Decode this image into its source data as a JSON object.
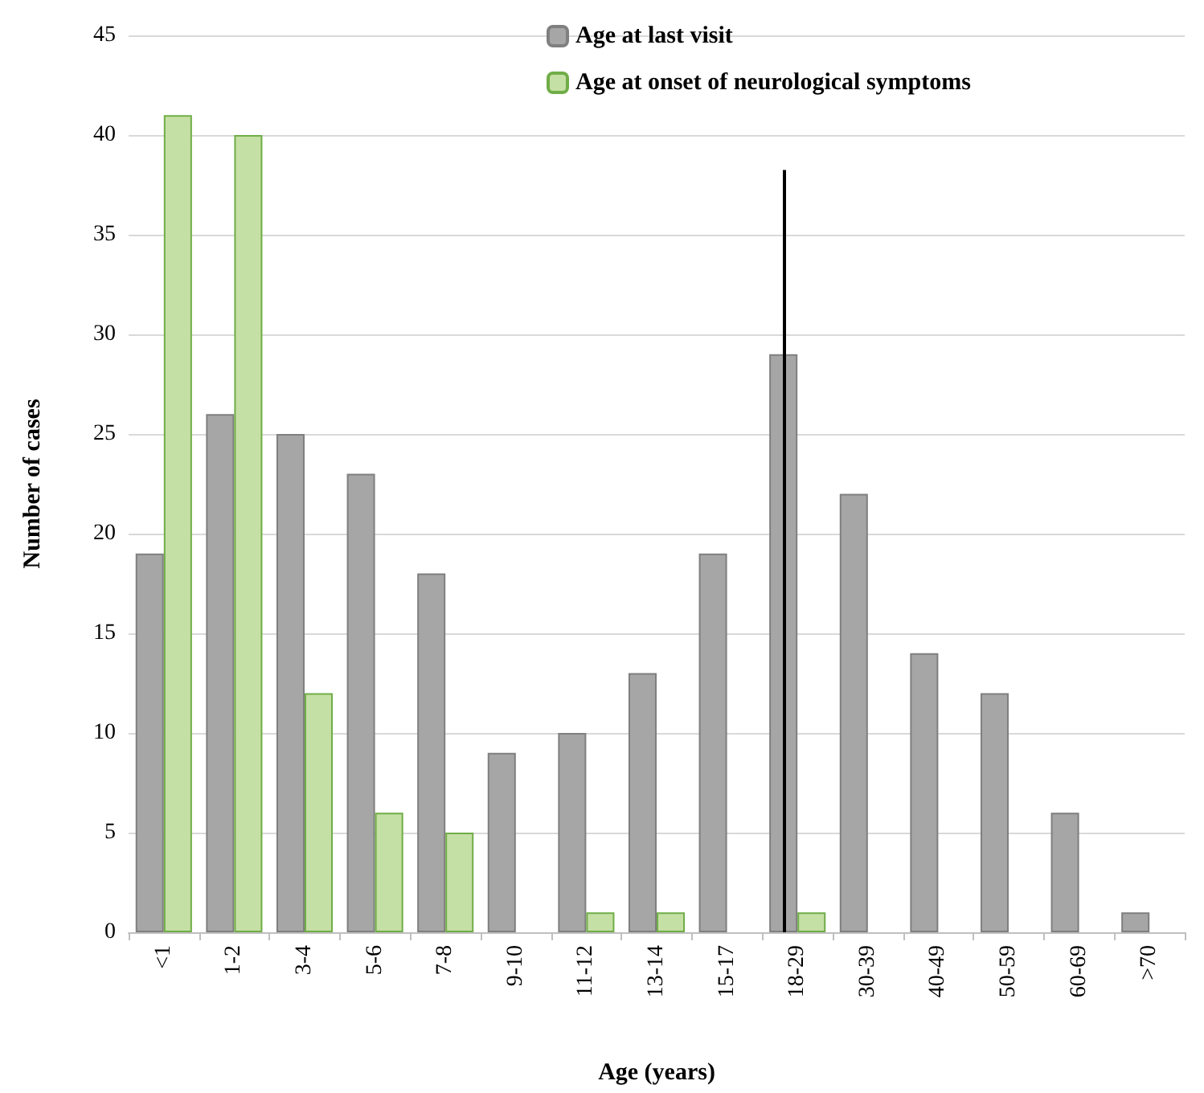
{
  "chart_data": {
    "type": "bar",
    "xlabel": "Age (years)",
    "ylabel": "Number of cases",
    "categories": [
      "<1",
      "1-2",
      "3-4",
      "5-6",
      "7-8",
      "9-10",
      "11-12",
      "13-14",
      "15-17",
      "18-29",
      "30-39",
      "40-49",
      "50-59",
      "60-69",
      ">70"
    ],
    "series": [
      {
        "name": "Age at last visit",
        "color": "#a6a6a6",
        "values": [
          19,
          26,
          25,
          23,
          18,
          9,
          10,
          13,
          19,
          29,
          22,
          14,
          12,
          6,
          1
        ]
      },
      {
        "name": "Age at onset of neurological symptoms",
        "color": "#c5e0a5",
        "values": [
          41,
          40,
          12,
          6,
          5,
          null,
          1,
          1,
          null,
          1,
          null,
          null,
          null,
          null,
          null
        ]
      }
    ],
    "ylim": [
      0,
      45
    ],
    "yticks": [
      0,
      5,
      10,
      15,
      20,
      25,
      30,
      35,
      40,
      45
    ],
    "grid": "y",
    "legend": "top right",
    "ref_lines": [
      {
        "axis": "x",
        "value": "18-29",
        "color": "#000000"
      }
    ]
  }
}
